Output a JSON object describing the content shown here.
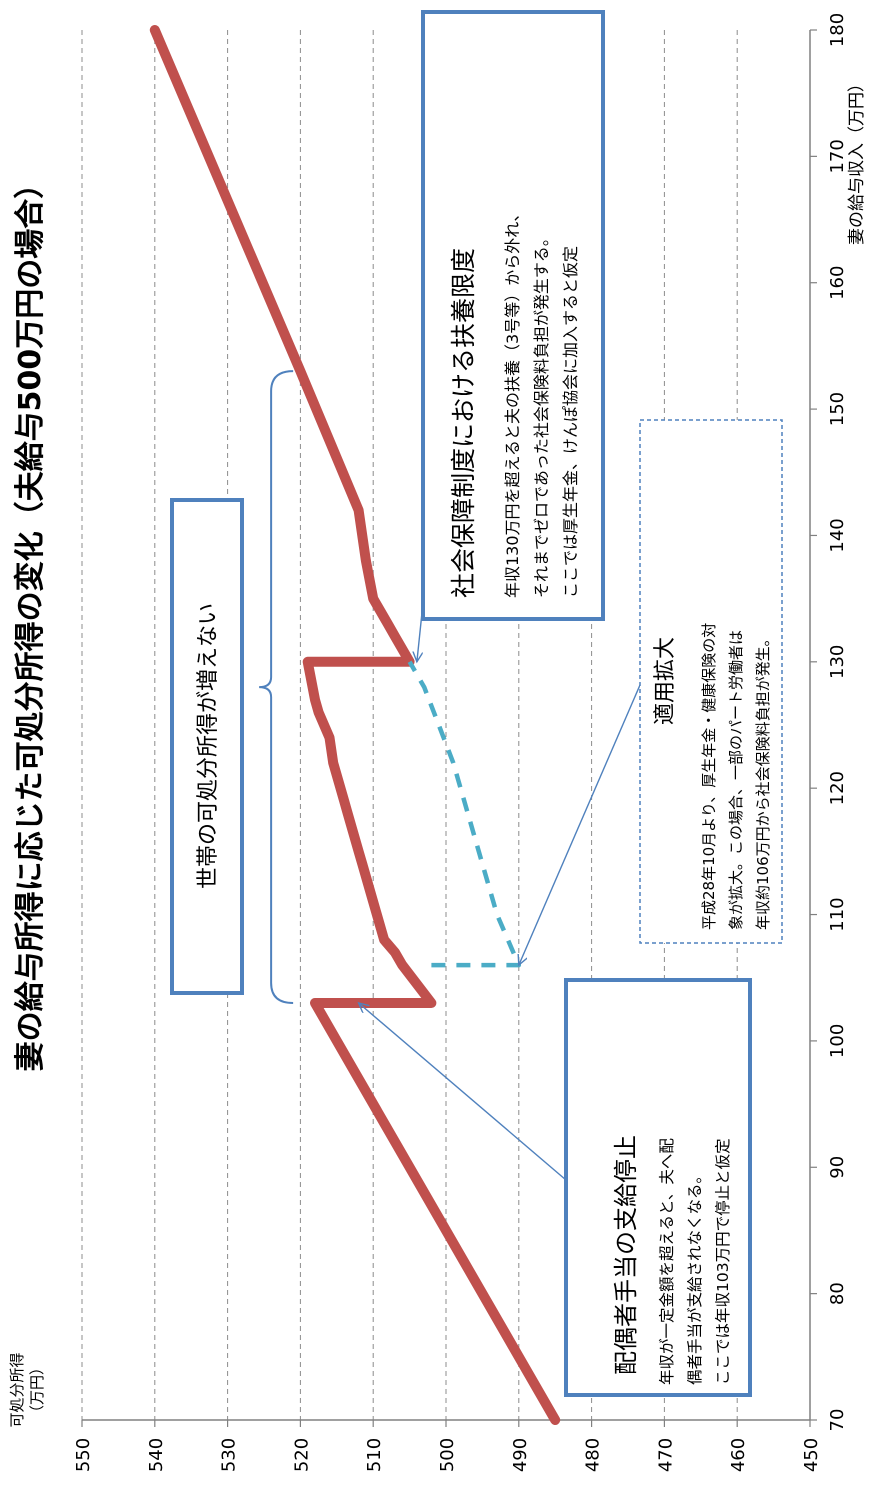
{
  "chart_data": {
    "type": "line",
    "title": "妻の給与所得に応じた可処分所得の変化（夫給与500万円の場合）",
    "xlabel": "妻の給与収入（万円）",
    "ylabel": "可処分所得（万円）",
    "ylabel_lines": [
      "可処分所得",
      "（万円）"
    ],
    "orientation": "rotated-90-clockwise",
    "xlim": [
      70,
      180
    ],
    "ylim": [
      450,
      550
    ],
    "x_ticks": [
      70,
      80,
      90,
      100,
      110,
      120,
      130,
      140,
      150,
      160,
      170,
      180
    ],
    "y_ticks": [
      450,
      460,
      470,
      480,
      490,
      500,
      510,
      520,
      530,
      540,
      550
    ],
    "grid": true,
    "colors": {
      "main": "#c0504d",
      "dashed": "#4bacc6",
      "box": "#4f81bd",
      "arrow": "#4f81bd"
    },
    "series": [
      {
        "x": [
          70,
          98,
          103,
          103,
          106,
          107,
          108,
          111,
          114,
          115,
          118,
          119,
          122,
          124,
          126,
          127,
          130,
          130,
          132,
          133,
          135,
          138,
          142,
          153,
          180
        ],
        "y": [
          485,
          513,
          518,
          502,
          506,
          507,
          508.5,
          510,
          511.5,
          512,
          513.5,
          514,
          515.5,
          516,
          517.5,
          518,
          519,
          505,
          507,
          508,
          510,
          511,
          512,
          520,
          540
        ],
        "style": "solid"
      },
      {
        "x": [
          106,
          106,
          110,
          116,
          122,
          128,
          130
        ],
        "y": [
          502,
          490,
          493,
          496,
          499,
          503,
          505
        ],
        "style": "dashed"
      }
    ],
    "brace": {
      "x_from": 103,
      "x_to": 153,
      "y": 521
    },
    "annotations": [
      {
        "id": "haigusha",
        "heading": "配偶者手当の支給停止",
        "body": [
          "年収が一定金額を超えると、夫へ配",
          "偶者手当が支給されなくなる。",
          "ここでは年収103万円で停止と仮定"
        ],
        "style": "thick-box",
        "arrow_to": {
          "x": 103,
          "y": 512
        }
      },
      {
        "id": "shakai",
        "heading": "社会保障制度における扶養限度",
        "body": [
          "年収130万円を超えると夫の扶養（3号等）から外れ、",
          "それまでゼロであった社会保険料負担が発生する。",
          "ここでは厚生年金、けんぽ協会に加入すると仮定"
        ],
        "style": "thick-box",
        "arrow_to": {
          "x": 130,
          "y": 504
        }
      },
      {
        "id": "tekiyo",
        "heading": "適用拡大",
        "body": [
          "平成28年10月より、厚生年金・健康保険の対",
          "象が拡大。この場合、一部のパート労働者は",
          "年収約106万円から社会保険料負担が発生。"
        ],
        "style": "dashed-box",
        "arrow_to": {
          "x": 106,
          "y": 490
        }
      },
      {
        "id": "setai",
        "heading": "世帯の可処分所得が増えない",
        "body": [],
        "style": "thick-box"
      }
    ]
  }
}
